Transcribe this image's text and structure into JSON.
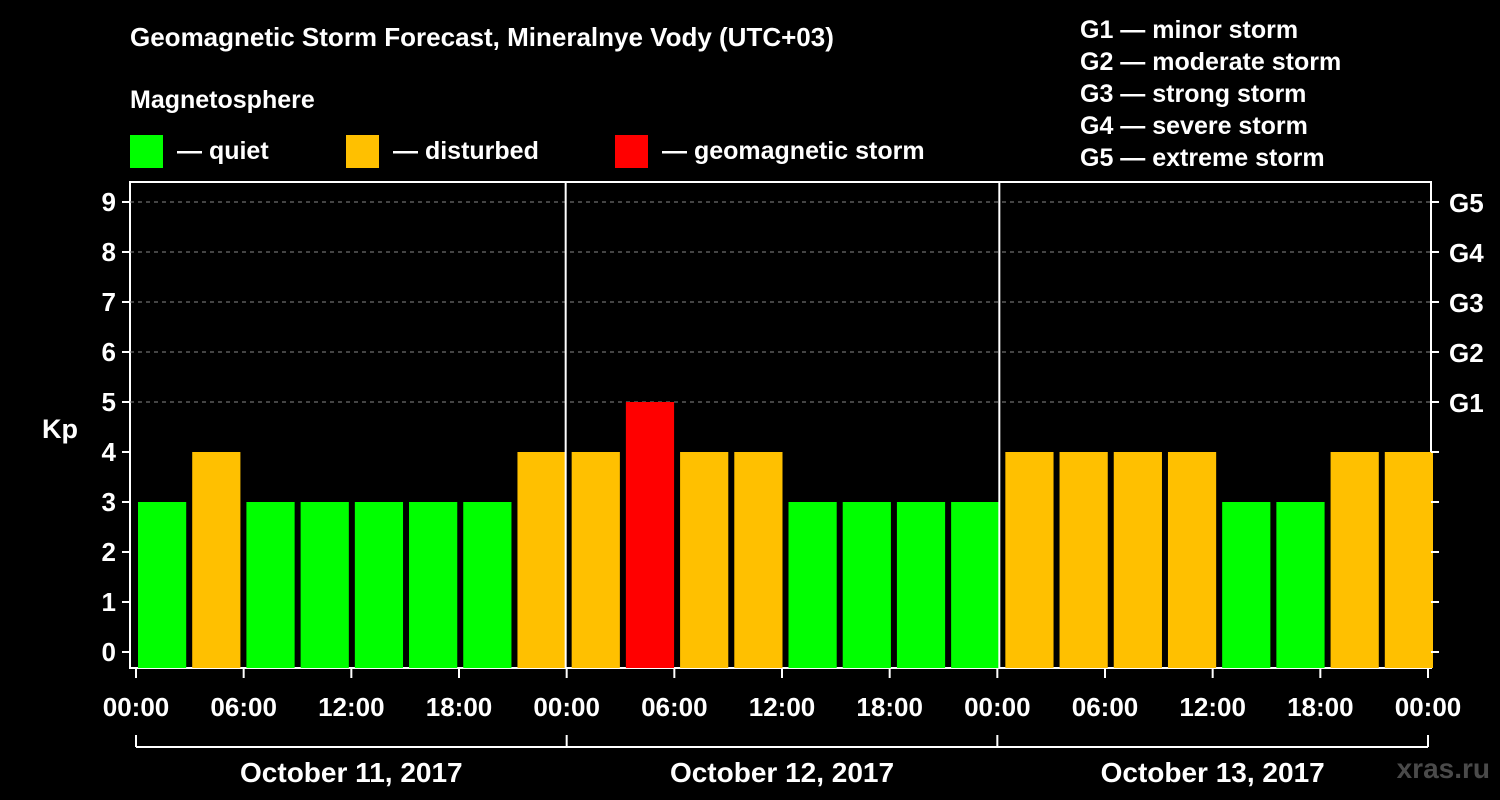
{
  "header": {
    "title": "Geomagnetic Storm Forecast, Mineralnye Vody (UTC+03)",
    "subtitle": "Magnetosphere"
  },
  "legend": [
    {
      "label": "— quiet",
      "color": "#00ff00"
    },
    {
      "label": "— disturbed",
      "color": "#ffc000"
    },
    {
      "label": "— geomagnetic storm",
      "color": "#ff0000"
    }
  ],
  "gscale": [
    "G1 — minor storm",
    "G2 — moderate storm",
    "G3 — strong storm",
    "G4 — severe storm",
    "G5 — extreme storm"
  ],
  "watermark": "xras.ru",
  "chart_data": {
    "type": "bar",
    "ylabel": "Kp",
    "ylim": [
      0,
      9
    ],
    "yticks": [
      0,
      1,
      2,
      3,
      4,
      5,
      6,
      7,
      8,
      9
    ],
    "right_labels": [
      {
        "value": 5,
        "label": "G1"
      },
      {
        "value": 6,
        "label": "G2"
      },
      {
        "value": 7,
        "label": "G3"
      },
      {
        "value": 8,
        "label": "G4"
      },
      {
        "value": 9,
        "label": "G5"
      }
    ],
    "grid": "horizontal dashed at 5-9",
    "x_tick_labels": [
      "00:00",
      "06:00",
      "12:00",
      "18:00",
      "00:00",
      "06:00",
      "12:00",
      "18:00",
      "00:00",
      "06:00",
      "12:00",
      "18:00",
      "00:00"
    ],
    "days": [
      "October 11, 2017",
      "October 12, 2017",
      "October 13, 2017"
    ],
    "interval_hours": 3,
    "values": [
      3,
      4,
      3,
      3,
      3,
      3,
      3,
      4,
      4,
      5,
      4,
      4,
      3,
      3,
      3,
      3,
      4,
      4,
      4,
      4,
      3,
      3,
      4,
      4
    ],
    "colors": {
      "quiet": "#00ff00",
      "disturbed": "#ffc000",
      "storm": "#ff0000"
    }
  }
}
